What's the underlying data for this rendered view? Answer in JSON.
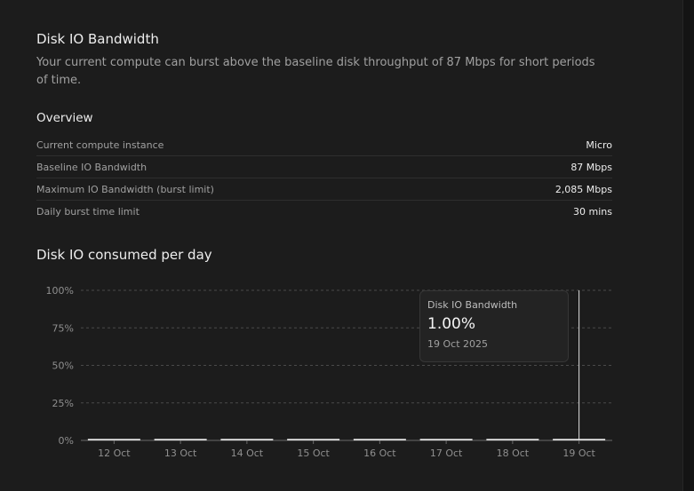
{
  "section": {
    "title": "Disk IO Bandwidth",
    "description": "Your current compute can burst above the baseline disk throughput of 87 Mbps for short periods of time."
  },
  "overview": {
    "title": "Overview",
    "rows": [
      {
        "label": "Current compute instance",
        "value": "Micro"
      },
      {
        "label": "Baseline IO Bandwidth",
        "value": "87 Mbps"
      },
      {
        "label": "Maximum IO Bandwidth (burst limit)",
        "value": "2,085 Mbps"
      },
      {
        "label": "Daily burst time limit",
        "value": "30 mins"
      }
    ]
  },
  "chart_section": {
    "title": "Disk IO consumed per day"
  },
  "colors": {
    "background": "#1c1c1c",
    "bar": "#e8e8e8",
    "grid": "#4a4a4a",
    "tooltip_bg": "#232323"
  },
  "chart_data": {
    "type": "bar",
    "categories": [
      "12 Oct",
      "13 Oct",
      "14 Oct",
      "15 Oct",
      "16 Oct",
      "17 Oct",
      "18 Oct",
      "19 Oct"
    ],
    "series": [
      {
        "name": "Disk IO Bandwidth",
        "values": [
          1,
          1,
          1,
          1,
          1,
          1,
          1,
          1
        ]
      }
    ],
    "ylim": [
      0,
      100
    ],
    "yticks": [
      "0%",
      "25%",
      "50%",
      "75%",
      "100%"
    ],
    "grid": true,
    "highlighted_category": "19 Oct"
  },
  "tooltip": {
    "series": "Disk IO Bandwidth",
    "value": "1.00%",
    "date": "19 Oct 2025"
  }
}
